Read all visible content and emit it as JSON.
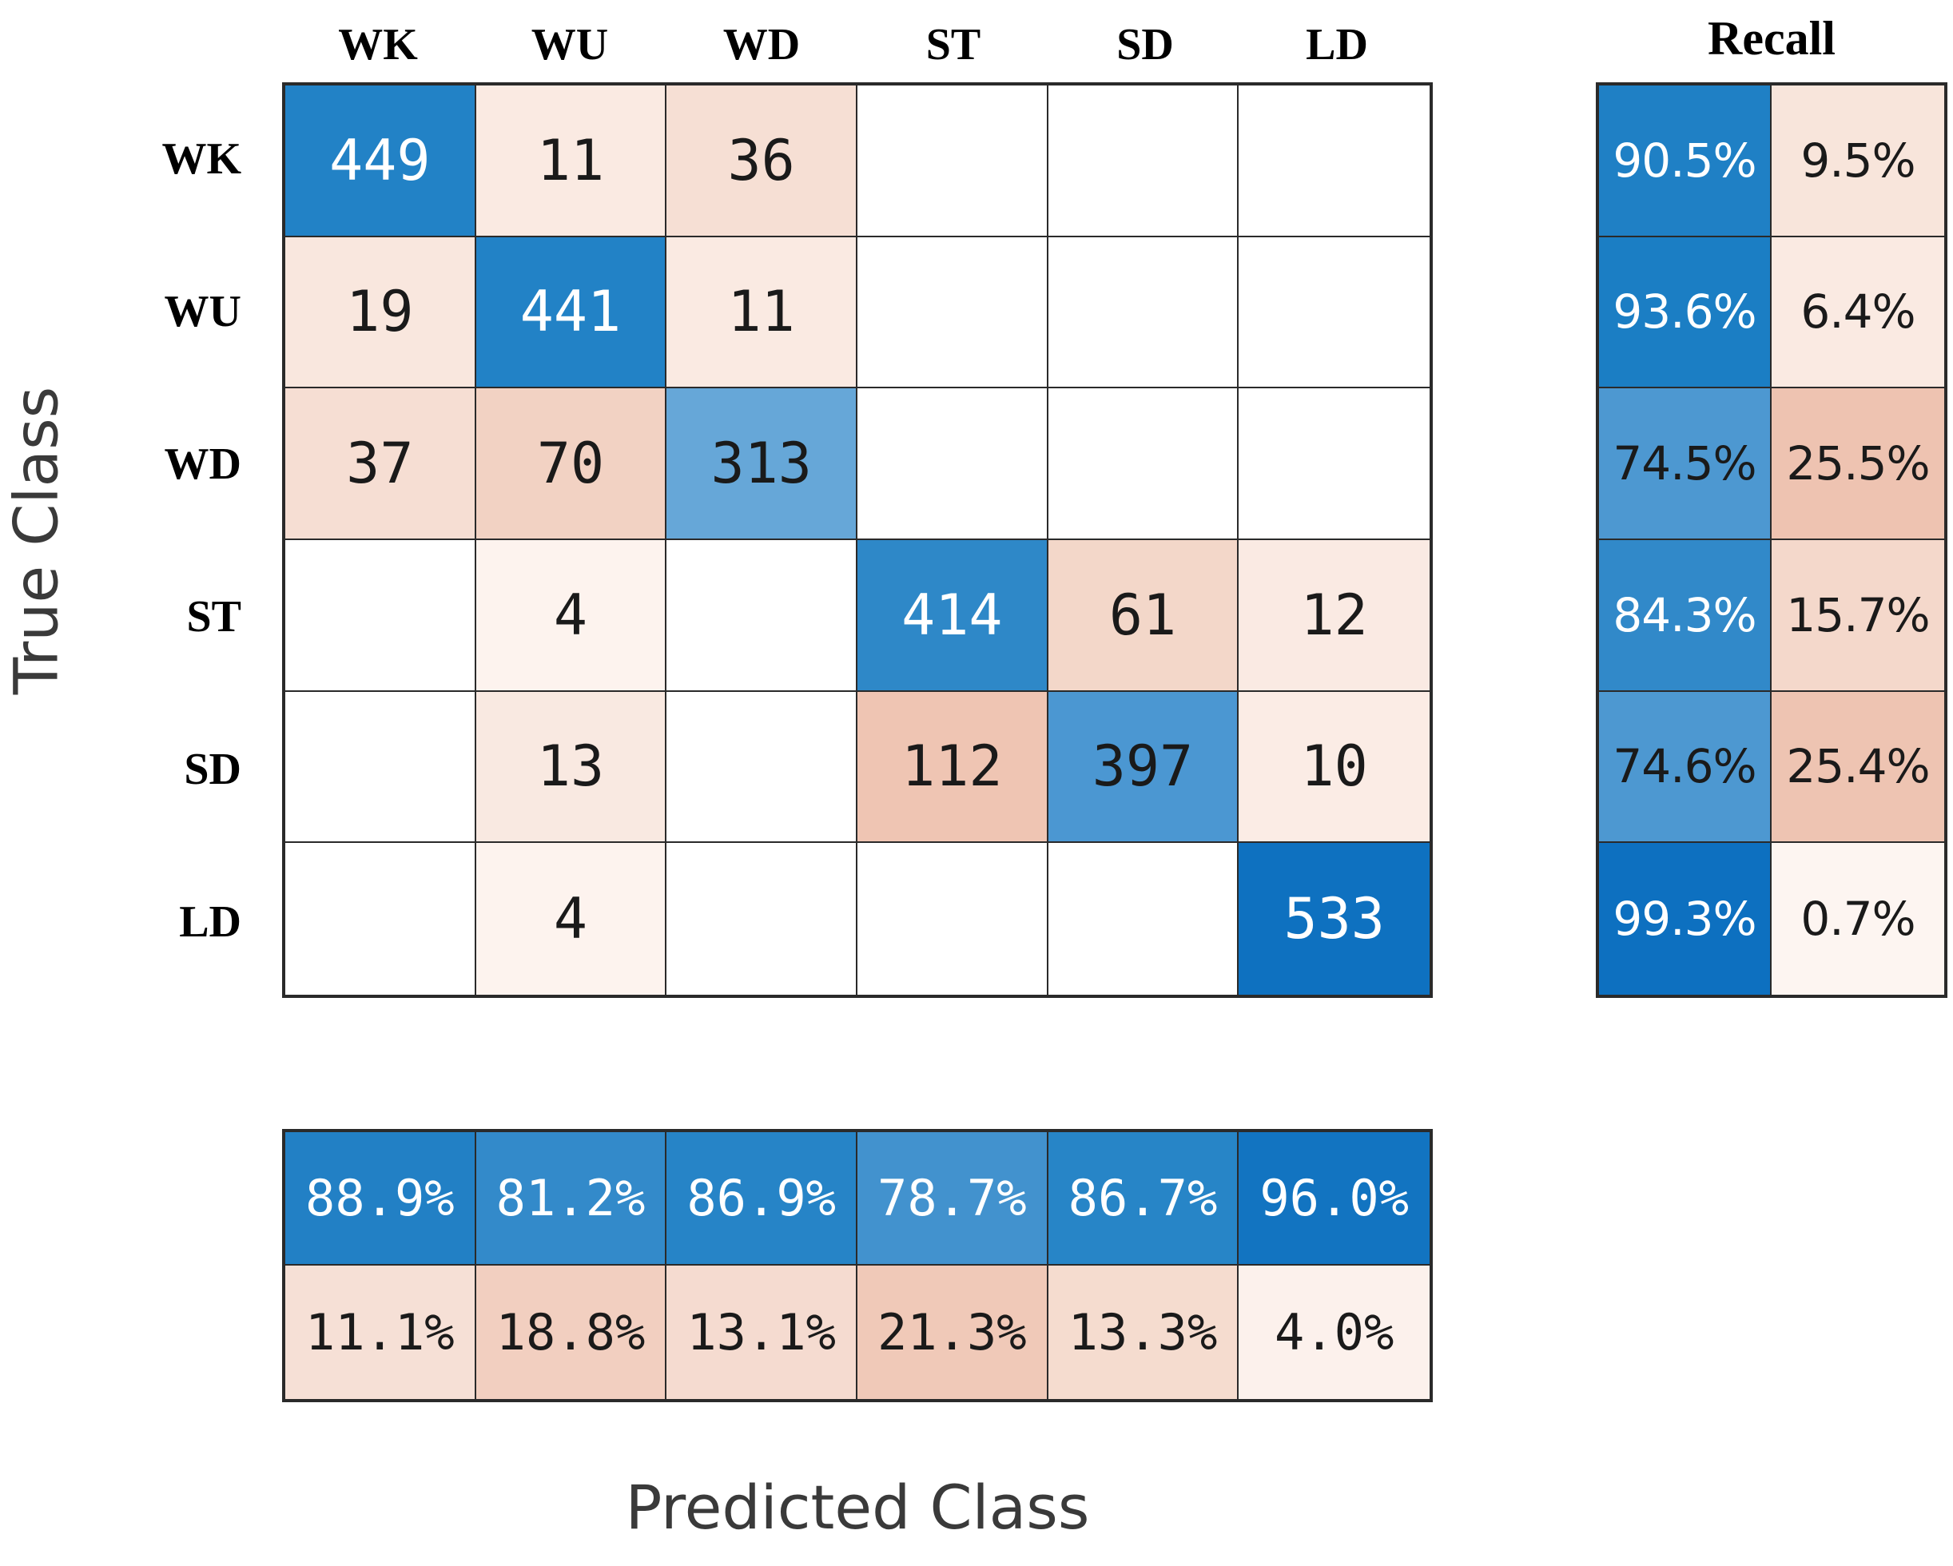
{
  "figure": {
    "recall_title": "Recall",
    "xlabel": "Predicted Class",
    "ylabel": "True Class"
  },
  "chart_data": {
    "type": "heatmap",
    "classes": [
      "WK",
      "WU",
      "WD",
      "ST",
      "SD",
      "LD"
    ],
    "xlabel": "Predicted Class",
    "ylabel": "True Class",
    "matrix": [
      [
        449,
        11,
        36,
        null,
        null,
        null
      ],
      [
        19,
        441,
        11,
        null,
        null,
        null
      ],
      [
        37,
        70,
        313,
        null,
        null,
        null
      ],
      [
        null,
        4,
        null,
        414,
        61,
        12
      ],
      [
        null,
        13,
        null,
        112,
        397,
        10
      ],
      [
        null,
        4,
        null,
        null,
        null,
        533
      ]
    ],
    "recall_pct": [
      [
        "90.5%",
        "9.5%"
      ],
      [
        "93.6%",
        "6.4%"
      ],
      [
        "74.5%",
        "25.5%"
      ],
      [
        "84.3%",
        "15.7%"
      ],
      [
        "74.6%",
        "25.4%"
      ],
      [
        "99.3%",
        "0.7%"
      ]
    ],
    "precision_pct": [
      [
        "88.9%",
        "81.2%",
        "86.9%",
        "78.7%",
        "86.7%",
        "96.0%"
      ],
      [
        "11.1%",
        "18.8%",
        "13.1%",
        "21.3%",
        "13.3%",
        "4.0%"
      ]
    ],
    "colors": {
      "border": "#2a2a2a",
      "axis_label": "#3a3a3a",
      "empty_cell": "#ffffff",
      "matrix_bg": [
        [
          "#2282c6",
          "#faeae2",
          "#f6dfd4",
          "#ffffff",
          "#ffffff",
          "#ffffff"
        ],
        [
          "#f9e7de",
          "#2282c6",
          "#faeae2",
          "#ffffff",
          "#ffffff",
          "#ffffff"
        ],
        [
          "#f6ded3",
          "#f2d2c3",
          "#66a7d8",
          "#ffffff",
          "#ffffff",
          "#ffffff"
        ],
        [
          "#ffffff",
          "#fdf3ee",
          "#ffffff",
          "#2e88c8",
          "#f3d7c9",
          "#faeae3"
        ],
        [
          "#ffffff",
          "#f9e9e1",
          "#ffffff",
          "#efc5b3",
          "#4b97d2",
          "#fbece5"
        ],
        [
          "#ffffff",
          "#fdf3ee",
          "#ffffff",
          "#ffffff",
          "#ffffff",
          "#0e71c0"
        ]
      ],
      "matrix_fg": [
        [
          "#ffffff",
          "#1a1a1a",
          "#1a1a1a",
          "#1a1a1a",
          "#1a1a1a",
          "#1a1a1a"
        ],
        [
          "#1a1a1a",
          "#ffffff",
          "#1a1a1a",
          "#1a1a1a",
          "#1a1a1a",
          "#1a1a1a"
        ],
        [
          "#1a1a1a",
          "#1a1a1a",
          "#1a1a1a",
          "#1a1a1a",
          "#1a1a1a",
          "#1a1a1a"
        ],
        [
          "#1a1a1a",
          "#1a1a1a",
          "#1a1a1a",
          "#ffffff",
          "#1a1a1a",
          "#1a1a1a"
        ],
        [
          "#1a1a1a",
          "#1a1a1a",
          "#1a1a1a",
          "#1a1a1a",
          "#1a1a1a",
          "#1a1a1a"
        ],
        [
          "#1a1a1a",
          "#1a1a1a",
          "#1a1a1a",
          "#1a1a1a",
          "#1a1a1a",
          "#ffffff"
        ]
      ],
      "recall_bg": [
        [
          "#1f80c5",
          "#f8e5db"
        ],
        [
          "#1b7ec4",
          "#faeae2"
        ],
        [
          "#4d98d1",
          "#eec3b1"
        ],
        [
          "#3189c9",
          "#f4d8cb"
        ],
        [
          "#4d98d1",
          "#eec4b2"
        ],
        [
          "#0d70c0",
          "#fdf5f1"
        ]
      ],
      "recall_fg": [
        [
          "#ffffff",
          "#1a1a1a"
        ],
        [
          "#ffffff",
          "#1a1a1a"
        ],
        [
          "#1a1a1a",
          "#1a1a1a"
        ],
        [
          "#ffffff",
          "#1a1a1a"
        ],
        [
          "#1a1a1a",
          "#1a1a1a"
        ],
        [
          "#ffffff",
          "#1a1a1a"
        ]
      ],
      "precision_bg": [
        [
          "#2280c5",
          "#338aca",
          "#2684c7",
          "#4292ce",
          "#2785c7",
          "#1274c1"
        ],
        [
          "#f6e0d6",
          "#f2cfc0",
          "#f5dbd0",
          "#f0c9b8",
          "#f5dccf",
          "#fcf1ec"
        ]
      ],
      "precision_fg": [
        [
          "#ffffff",
          "#ffffff",
          "#ffffff",
          "#ffffff",
          "#ffffff",
          "#ffffff"
        ],
        [
          "#1a1a1a",
          "#1a1a1a",
          "#1a1a1a",
          "#1a1a1a",
          "#1a1a1a",
          "#1a1a1a"
        ]
      ]
    }
  }
}
